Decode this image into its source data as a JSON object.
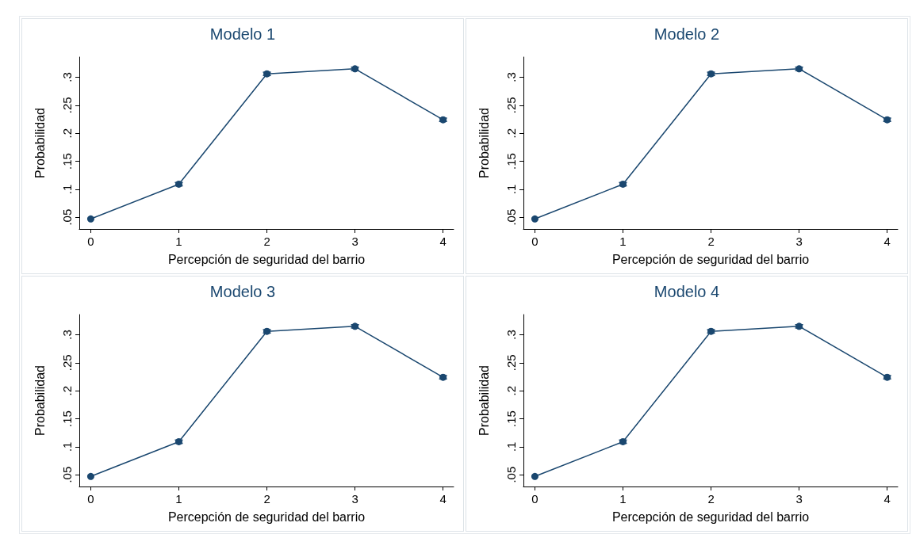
{
  "chart_data": [
    {
      "type": "line",
      "title": "Modelo 1",
      "xlabel": "Percepción de seguridad del barrio",
      "ylabel": "Probabilidad",
      "x": [
        0,
        1,
        2,
        3,
        4
      ],
      "series": [
        {
          "color": "#1a476f",
          "values": [
            0.047,
            0.109,
            0.306,
            0.315,
            0.224
          ],
          "errors": [
            null,
            0.003,
            0.003,
            0.003,
            0.003
          ]
        }
      ],
      "xlim": [
        -0.13,
        4.12
      ],
      "xticks": [
        0,
        1,
        2,
        3,
        4
      ],
      "ylim": [
        0.029,
        0.336
      ],
      "yticks": [
        {
          "value": 0.05,
          "label": ".05"
        },
        {
          "value": 0.1,
          "label": ".1"
        },
        {
          "value": 0.15,
          "label": ".15"
        },
        {
          "value": 0.2,
          "label": ".2"
        },
        {
          "value": 0.25,
          "label": ".25"
        },
        {
          "value": 0.3,
          "label": ".3"
        }
      ],
      "grid": false,
      "marker": "circle",
      "line_style": "solid"
    },
    {
      "type": "line",
      "title": "Modelo 2",
      "xlabel": "Percepción de seguridad del barrio",
      "ylabel": "Probabilidad",
      "x": [
        0,
        1,
        2,
        3,
        4
      ],
      "series": [
        {
          "color": "#1a476f",
          "values": [
            0.047,
            0.109,
            0.306,
            0.315,
            0.224
          ],
          "errors": [
            null,
            0.003,
            0.003,
            0.003,
            0.003
          ]
        }
      ],
      "xlim": [
        -0.13,
        4.12
      ],
      "xticks": [
        0,
        1,
        2,
        3,
        4
      ],
      "ylim": [
        0.029,
        0.336
      ],
      "yticks": [
        {
          "value": 0.05,
          "label": ".05"
        },
        {
          "value": 0.1,
          "label": ".1"
        },
        {
          "value": 0.15,
          "label": ".15"
        },
        {
          "value": 0.2,
          "label": ".2"
        },
        {
          "value": 0.25,
          "label": ".25"
        },
        {
          "value": 0.3,
          "label": ".3"
        }
      ],
      "grid": false,
      "marker": "circle",
      "line_style": "solid"
    },
    {
      "type": "line",
      "title": "Modelo 3",
      "xlabel": "Percepción de seguridad del barrio",
      "ylabel": "Probabilidad",
      "x": [
        0,
        1,
        2,
        3,
        4
      ],
      "series": [
        {
          "color": "#1a476f",
          "values": [
            0.047,
            0.109,
            0.306,
            0.315,
            0.224
          ],
          "errors": [
            null,
            0.003,
            0.003,
            0.003,
            0.003
          ]
        }
      ],
      "xlim": [
        -0.13,
        4.12
      ],
      "xticks": [
        0,
        1,
        2,
        3,
        4
      ],
      "ylim": [
        0.029,
        0.336
      ],
      "yticks": [
        {
          "value": 0.05,
          "label": ".05"
        },
        {
          "value": 0.1,
          "label": ".1"
        },
        {
          "value": 0.15,
          "label": ".15"
        },
        {
          "value": 0.2,
          "label": ".2"
        },
        {
          "value": 0.25,
          "label": ".25"
        },
        {
          "value": 0.3,
          "label": ".3"
        }
      ],
      "grid": false,
      "marker": "circle",
      "line_style": "solid"
    },
    {
      "type": "line",
      "title": "Modelo 4",
      "xlabel": "Percepción de seguridad del barrio",
      "ylabel": "Probabilidad",
      "x": [
        0,
        1,
        2,
        3,
        4
      ],
      "series": [
        {
          "color": "#1a476f",
          "values": [
            0.047,
            0.109,
            0.306,
            0.315,
            0.224
          ],
          "errors": [
            null,
            0.003,
            0.003,
            0.003,
            0.003
          ]
        }
      ],
      "xlim": [
        -0.13,
        4.12
      ],
      "xticks": [
        0,
        1,
        2,
        3,
        4
      ],
      "ylim": [
        0.029,
        0.336
      ],
      "yticks": [
        {
          "value": 0.05,
          "label": ".05"
        },
        {
          "value": 0.1,
          "label": ".1"
        },
        {
          "value": 0.15,
          "label": ".15"
        },
        {
          "value": 0.2,
          "label": ".2"
        },
        {
          "value": 0.25,
          "label": ".25"
        },
        {
          "value": 0.3,
          "label": ".3"
        }
      ],
      "grid": false,
      "marker": "circle",
      "line_style": "solid"
    }
  ]
}
